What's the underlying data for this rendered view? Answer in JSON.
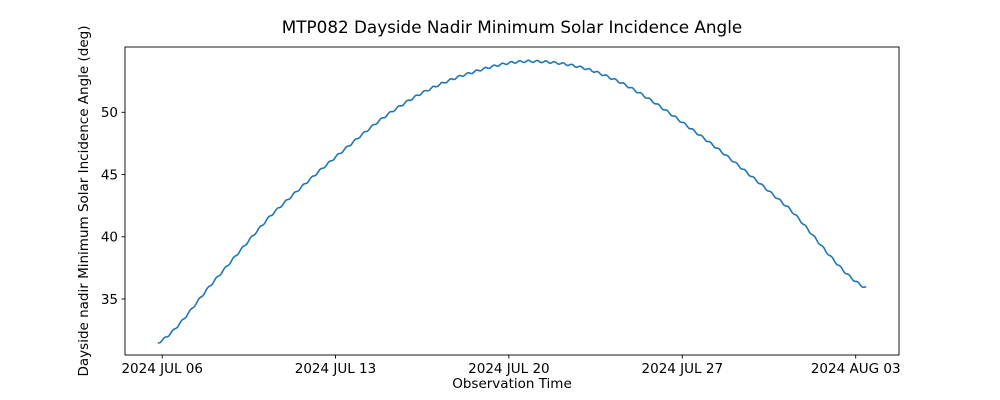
{
  "chart_data": {
    "type": "line",
    "title": "MTP082 Dayside Nadir Minimum Solar Incidence Angle",
    "xlabel": "Observation Time",
    "ylabel": "Dayside nadir Minimum Solar Incidence Angle (deg)",
    "line_color": "#1f77b4",
    "background_color": "#ffffff",
    "spine_color": "#000000",
    "legend": "none",
    "grid": false,
    "x_axis_unit": "days relative to first x tick",
    "xlim": [
      -1.5,
      29.75
    ],
    "ylim": [
      30.5,
      55.25
    ],
    "x_ticks": [
      {
        "t": 0,
        "label": "2024 JUL 06"
      },
      {
        "t": 7,
        "label": "2024 JUL 13"
      },
      {
        "t": 14,
        "label": "2024 JUL 20"
      },
      {
        "t": 21,
        "label": "2024 JUL 27"
      },
      {
        "t": 28,
        "label": "2024 AUG 03"
      }
    ],
    "y_ticks": [
      35,
      40,
      45,
      50
    ],
    "series": [
      {
        "name": "dayside-nadir-min-solar-incidence-angle",
        "anchors": [
          [
            -0.15,
            31.5
          ],
          [
            2.17,
            36.6
          ],
          [
            4.38,
            41.7
          ],
          [
            7.0,
            46.4
          ],
          [
            9.61,
            50.5
          ],
          [
            12.03,
            52.9
          ],
          [
            14.84,
            54.1
          ],
          [
            18.06,
            52.8
          ],
          [
            21.68,
            48.2
          ],
          [
            25.3,
            42.3
          ],
          [
            28.4,
            35.9
          ]
        ],
        "wiggle": {
          "period_days": 0.35,
          "amplitude_deg": 0.09
        }
      }
    ]
  }
}
